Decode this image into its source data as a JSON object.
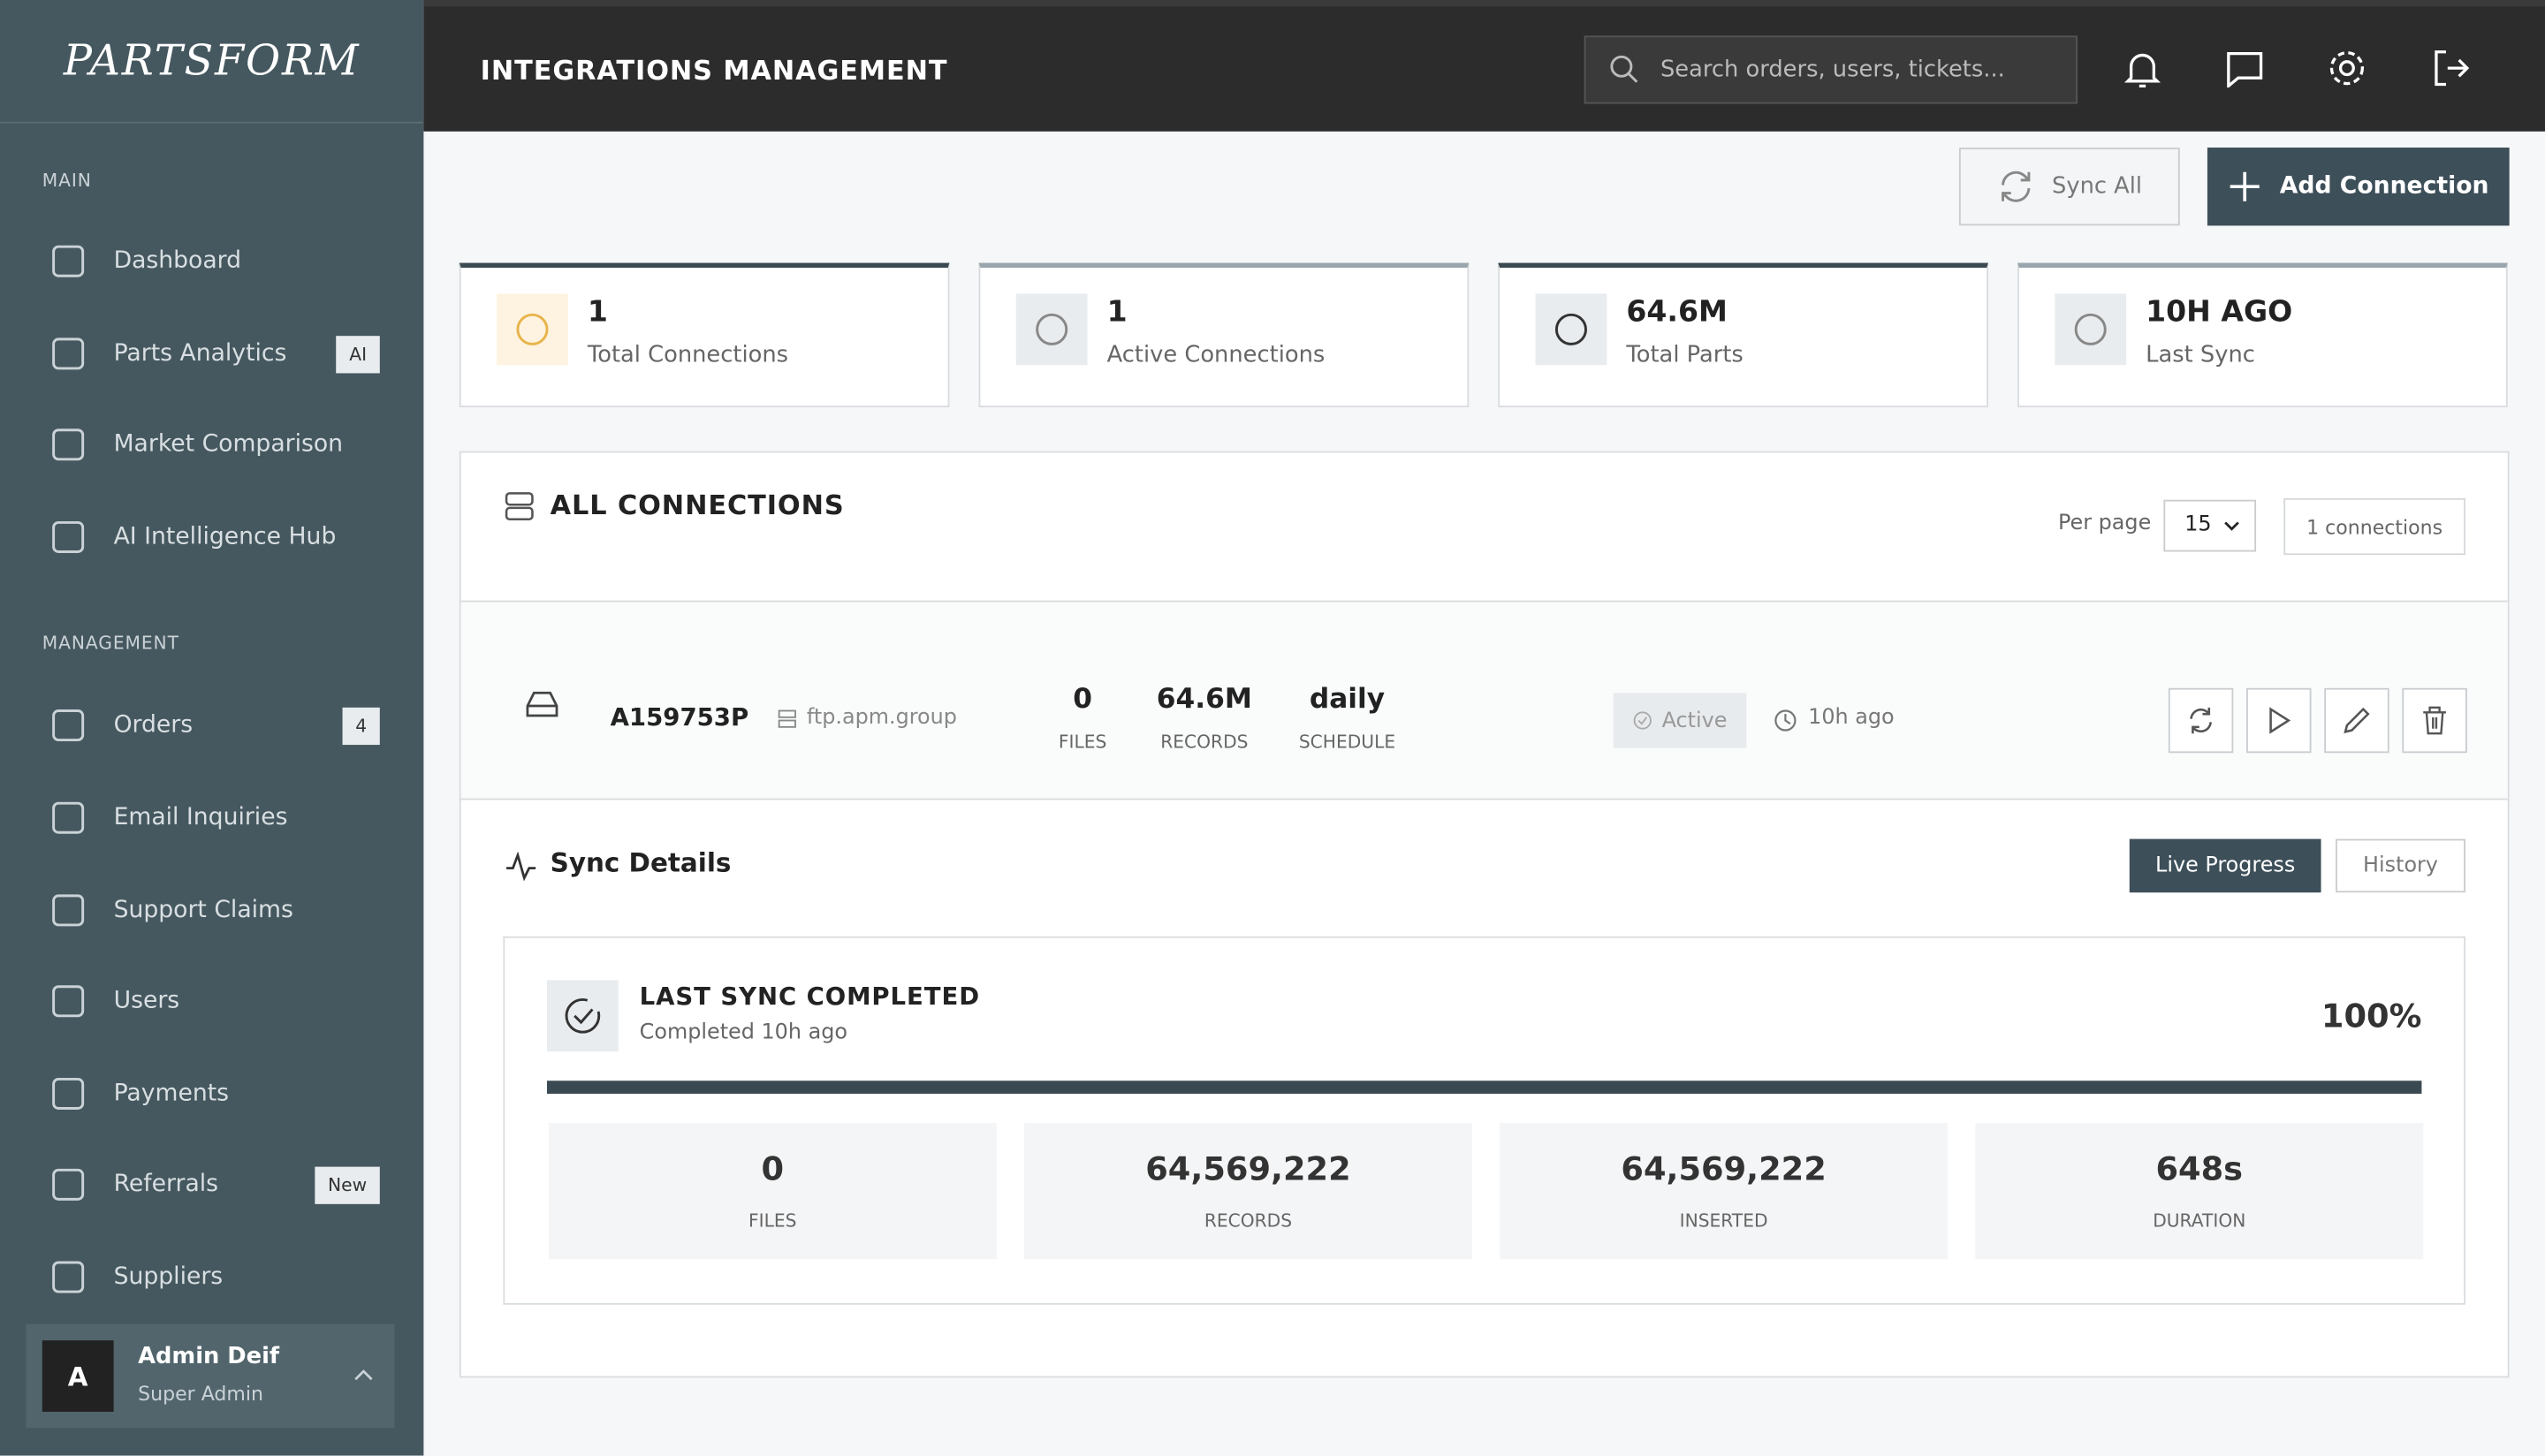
{
  "sidebar": {
    "logo": "PARTSFORM",
    "sections": [
      {
        "title": "MAIN",
        "items": [
          {
            "label": "Dashboard"
          },
          {
            "label": "Parts Analytics",
            "badge": "AI"
          },
          {
            "label": "Market Comparison"
          },
          {
            "label": "AI Intelligence Hub"
          }
        ]
      },
      {
        "title": "MANAGEMENT",
        "items": [
          {
            "label": "Orders",
            "badge": "4"
          },
          {
            "label": "Email Inquiries"
          },
          {
            "label": "Support Claims"
          },
          {
            "label": "Users"
          },
          {
            "label": "Payments"
          },
          {
            "label": "Referrals",
            "badge": "New"
          },
          {
            "label": "Suppliers"
          }
        ]
      }
    ],
    "user": {
      "initial": "A",
      "name": "Admin Deif",
      "role": "Super Admin"
    }
  },
  "header": {
    "title": "INTEGRATIONS MANAGEMENT",
    "search_placeholder": "Search orders, users, tickets..."
  },
  "actions": [
    "Sync All",
    "Add Connection"
  ],
  "stats": [
    {
      "value": "1",
      "label": "Total Connections"
    },
    {
      "value": "1",
      "label": "Active Connections"
    },
    {
      "value": "64.6M",
      "label": "Total Parts"
    },
    {
      "value": "10H AGO",
      "label": "Last Sync"
    }
  ],
  "connections": {
    "title": "ALL CONNECTIONS",
    "per_page_label": "Per page",
    "per_page": "15",
    "count": "1 connections",
    "rows": [
      {
        "name": "A159753P",
        "host": "ftp.apm.group",
        "metrics": [
          {
            "value": "0",
            "label": "FILES"
          },
          {
            "value": "64.6M",
            "label": "RECORDS"
          },
          {
            "value": "daily",
            "label": "SCHEDULE"
          }
        ],
        "status": "Active",
        "last_sync": "10h ago"
      }
    ]
  },
  "sync_details": {
    "title": "Sync Details",
    "tabs": [
      "Live Progress",
      "History"
    ],
    "status": "LAST SYNC COMPLETED",
    "subtitle": "Completed 10h ago",
    "progress": 100,
    "progress_label": "100%",
    "metrics": [
      {
        "value": "0",
        "label": "FILES"
      },
      {
        "value": "64,569,222",
        "label": "RECORDS"
      },
      {
        "value": "64,569,222",
        "label": "INSERTED"
      },
      {
        "value": "648s",
        "label": "DURATION"
      }
    ]
  }
}
